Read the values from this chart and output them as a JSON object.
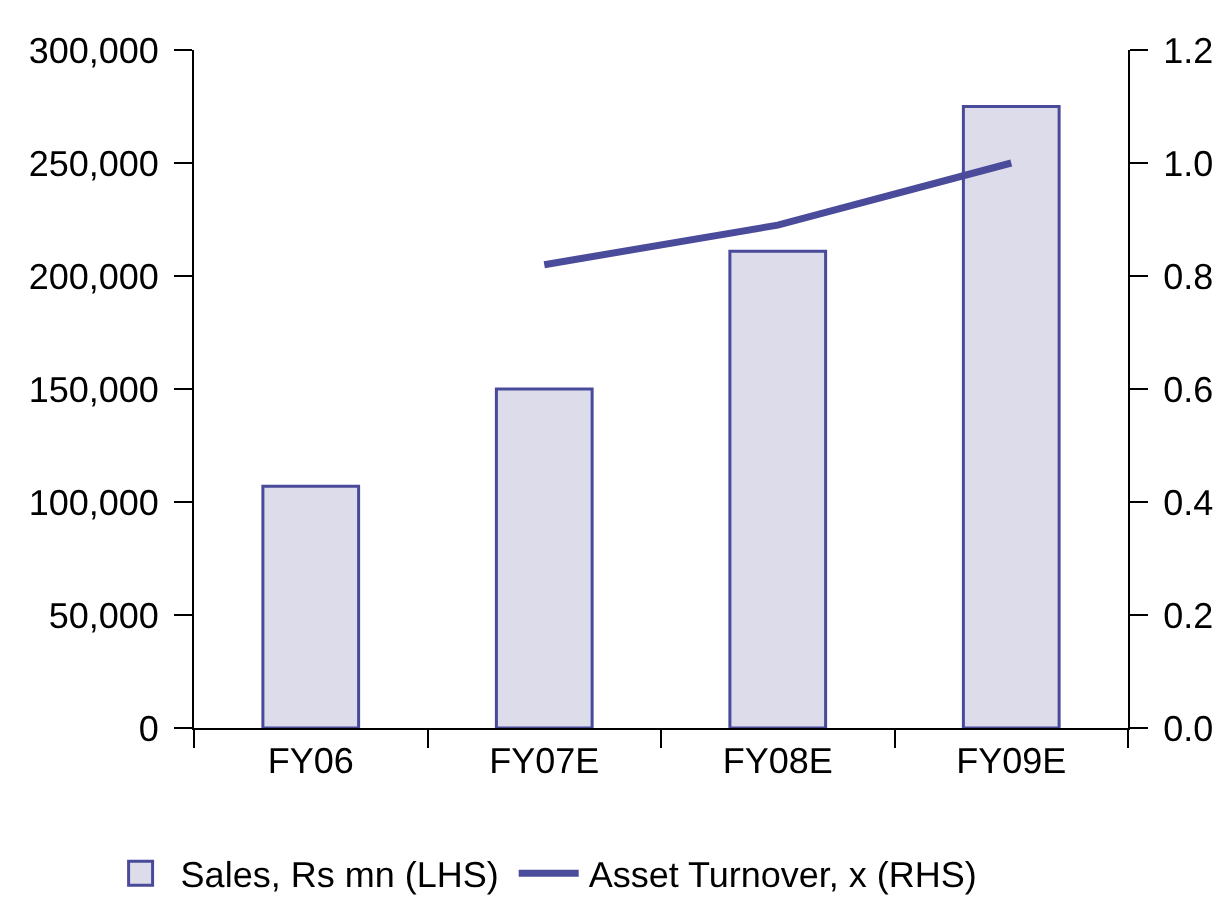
{
  "chart_data": {
    "type": "bar",
    "categories": [
      "FY06",
      "FY07E",
      "FY08E",
      "FY09E"
    ],
    "series": [
      {
        "name": "Sales, Rs mn (LHS)",
        "color": "#dcdcea",
        "values": [
          107000,
          150000,
          211000,
          275000
        ]
      },
      {
        "name": "Asset Turnover, x (RHS)",
        "type": "line",
        "axis": "y2",
        "color": "#4b4b9b",
        "values": [
          null,
          0.82,
          0.89,
          1.0
        ]
      }
    ],
    "ylim": [
      0,
      300000
    ],
    "yticks": [
      0,
      {
        "value": 50000,
        "label": "50,000"
      },
      {
        "value": 100000,
        "label": "100,000"
      },
      {
        "value": 150000,
        "label": "150,000"
      },
      {
        "value": 200000,
        "label": "200,000"
      },
      {
        "value": 250000,
        "label": "250,000"
      },
      {
        "value": 300000,
        "label": "300,000"
      }
    ],
    "y2lim": [
      0,
      1.2
    ],
    "y2ticks": [
      {
        "value": 0,
        "label": "0.0"
      },
      {
        "value": 0.2,
        "label": "0.2"
      },
      {
        "value": 0.4,
        "label": "0.4"
      },
      {
        "value": 0.6,
        "label": "0.6"
      },
      {
        "value": 0.8,
        "label": "0.8"
      },
      {
        "value": 1.0,
        "label": "1.0"
      },
      1.2
    ],
    "grid": false,
    "legend": "bottom"
  }
}
